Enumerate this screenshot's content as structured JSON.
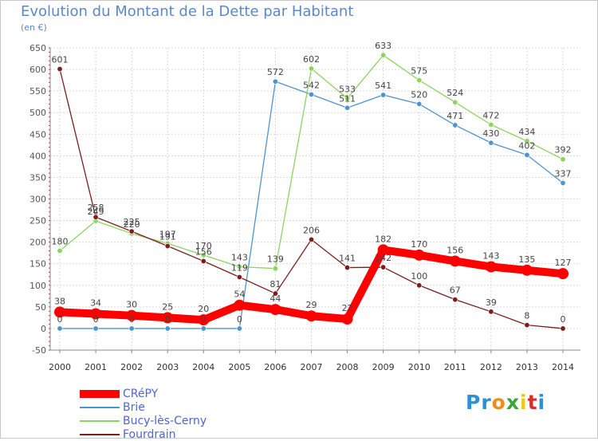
{
  "chart_data": {
    "type": "line",
    "title": "Evolution du Montant de la Dette par Habitant",
    "subtitle": "(en €)",
    "x": [
      "2000",
      "2001",
      "2002",
      "2003",
      "2004",
      "2005",
      "2006",
      "2007",
      "2008",
      "2009",
      "2010",
      "2011",
      "2012",
      "2013",
      "2014"
    ],
    "ylim": [
      -50,
      650
    ],
    "yticks": [
      -50,
      0,
      50,
      100,
      150,
      200,
      250,
      300,
      350,
      400,
      450,
      500,
      550,
      600,
      650
    ],
    "grid": true,
    "legend_position": "bottom-left",
    "series": [
      {
        "name": "CRéPY",
        "color": "#ff0000",
        "values": [
          38,
          34,
          30,
          25,
          20,
          54,
          44,
          29,
          22,
          182,
          170,
          156,
          143,
          135,
          127
        ]
      },
      {
        "name": "Brie",
        "color": "#4f93cf",
        "values": [
          0,
          0,
          0,
          0,
          0,
          0,
          572,
          542,
          511,
          541,
          520,
          471,
          430,
          402,
          337
        ]
      },
      {
        "name": "Bucy-lès-Cerny",
        "color": "#8dd35f",
        "values": [
          180,
          249,
          220,
          197,
          170,
          143,
          139,
          602,
          533,
          633,
          575,
          524,
          472,
          434,
          392
        ]
      },
      {
        "name": "Fourdrain",
        "color": "#7b1e1e",
        "values": [
          601,
          258,
          225,
          191,
          156,
          119,
          81,
          206,
          141,
          142,
          100,
          67,
          39,
          8,
          0
        ]
      }
    ]
  },
  "brand": {
    "letters": [
      "P",
      "r",
      "o",
      "x",
      "i",
      "t",
      "i"
    ],
    "colors": [
      "#2e8fd6",
      "#2e8fd6",
      "#f08c1a",
      "#3da535",
      "#f0c61a",
      "#d62e2e",
      "#2e8fd6"
    ]
  }
}
